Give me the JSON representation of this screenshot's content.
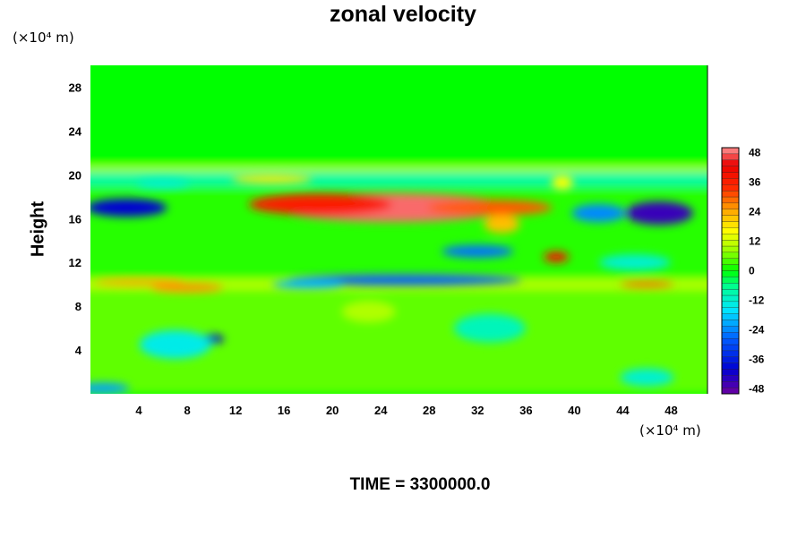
{
  "chart_data": {
    "type": "heatmap",
    "title": "zonal velocity",
    "ylabel": "Height",
    "x_unit": "(×10⁴ m)",
    "y_unit": "(×10⁴ m)",
    "xlim": [
      0,
      51
    ],
    "ylim": [
      0,
      30
    ],
    "x_ticks": [
      "4",
      "8",
      "12",
      "16",
      "20",
      "24",
      "28",
      "32",
      "36",
      "40",
      "44",
      "48"
    ],
    "y_ticks": [
      "4",
      "8",
      "12",
      "16",
      "20",
      "24",
      "28"
    ],
    "colorbar": {
      "min": -50,
      "max": 50,
      "ticks": [
        "48",
        "36",
        "24",
        "12",
        "0",
        "-12",
        "-24",
        "-36",
        "-48"
      ]
    },
    "features": [
      {
        "x": 25,
        "y": 17,
        "value": 48
      },
      {
        "x": 19,
        "y": 17.3,
        "value": 36
      },
      {
        "x": 33,
        "y": 17,
        "value": 30
      },
      {
        "x": 34,
        "y": 15.5,
        "value": 22
      },
      {
        "x": 38.5,
        "y": 12.5,
        "value": 38
      },
      {
        "x": 3,
        "y": 17,
        "value": -40
      },
      {
        "x": 47,
        "y": 16.5,
        "value": -45
      },
      {
        "x": 42,
        "y": 16.5,
        "value": -24
      },
      {
        "x": 32,
        "y": 13,
        "value": -26
      },
      {
        "x": 26,
        "y": 10.4,
        "value": -28
      },
      {
        "x": 18,
        "y": 10,
        "value": -20
      },
      {
        "x": 10,
        "y": 5,
        "value": -40
      },
      {
        "x": 4,
        "y": 10.2,
        "value": 24
      },
      {
        "x": 8,
        "y": 9.7,
        "value": 26
      },
      {
        "x": 46,
        "y": 10,
        "value": 30
      },
      {
        "x": 15,
        "y": 19.6,
        "value": 18
      },
      {
        "x": 39,
        "y": 19.3,
        "value": 16
      },
      {
        "x": 6,
        "y": 19.2,
        "value": -12
      },
      {
        "x": 45,
        "y": 12,
        "value": -12
      },
      {
        "x": 1,
        "y": 0.5,
        "value": -22
      },
      {
        "x": 7,
        "y": 4.5,
        "value": -14
      },
      {
        "x": 33,
        "y": 6,
        "value": -10
      },
      {
        "x": 23,
        "y": 7.5,
        "value": 10
      },
      {
        "x": 46,
        "y": 1.5,
        "value": -12
      }
    ],
    "grid": false
  },
  "time_label": "TIME =",
  "time_value": "3300000.0"
}
